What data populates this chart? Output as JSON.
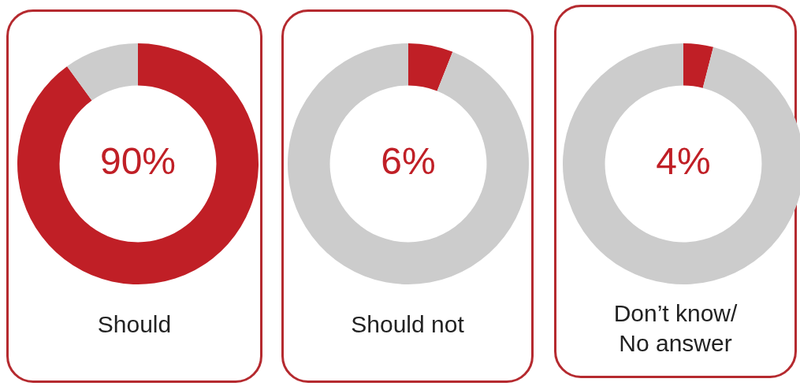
{
  "chart_data": [
    {
      "type": "donut",
      "title": "Should",
      "categories": [
        null,
        null
      ],
      "values": [
        90,
        10
      ],
      "colors": [
        "#c01f26",
        "#cccccc"
      ],
      "value_labels": [
        "90%",
        null
      ]
    },
    {
      "type": "donut",
      "title": "Should not",
      "categories": [
        null,
        null
      ],
      "values": [
        6,
        94
      ],
      "colors": [
        "#c01f26",
        "#cccccc"
      ],
      "value_labels": [
        "6%",
        null
      ]
    },
    {
      "type": "donut",
      "title": "Don’t know/\nNo answer",
      "categories": [
        null,
        null
      ],
      "values": [
        4,
        96
      ],
      "colors": [
        "#c01f26",
        "#cccccc"
      ],
      "value_labels": [
        "4%",
        null
      ]
    }
  ]
}
